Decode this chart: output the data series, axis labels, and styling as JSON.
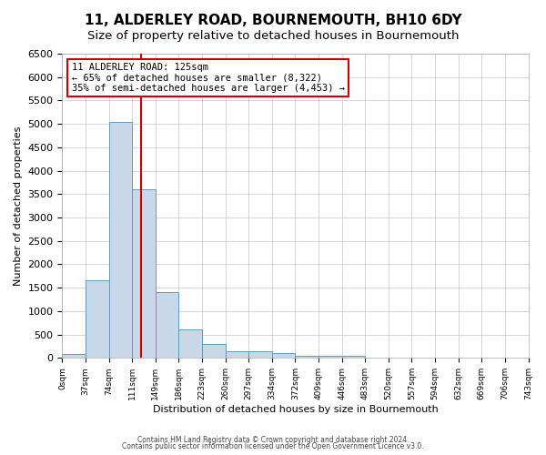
{
  "title": "11, ALDERLEY ROAD, BOURNEMOUTH, BH10 6DY",
  "subtitle": "Size of property relative to detached houses in Bournemouth",
  "xlabel": "Distribution of detached houses by size in Bournemouth",
  "ylabel": "Number of detached properties",
  "bin_labels": [
    "0sqm",
    "37sqm",
    "74sqm",
    "111sqm",
    "149sqm",
    "186sqm",
    "223sqm",
    "260sqm",
    "297sqm",
    "334sqm",
    "372sqm",
    "409sqm",
    "446sqm",
    "483sqm",
    "520sqm",
    "557sqm",
    "594sqm",
    "632sqm",
    "669sqm",
    "706sqm",
    "743sqm"
  ],
  "bar_heights": [
    75,
    1650,
    5050,
    3600,
    1400,
    600,
    300,
    150,
    150,
    100,
    50,
    50,
    50,
    0,
    0,
    0,
    0,
    0,
    0,
    0
  ],
  "bar_color": "#c8d8e8",
  "bar_edge_color": "#6699bb",
  "property_size": 125,
  "red_line_color": "#cc0000",
  "annotation_text": "11 ALDERLEY ROAD: 125sqm\n← 65% of detached houses are smaller (8,322)\n35% of semi-detached houses are larger (4,453) →",
  "annotation_box_color": "#cc0000",
  "ylim": [
    0,
    6500
  ],
  "yticks": [
    0,
    500,
    1000,
    1500,
    2000,
    2500,
    3000,
    3500,
    4000,
    4500,
    5000,
    5500,
    6000,
    6500
  ],
  "footer1": "Contains HM Land Registry data © Crown copyright and database right 2024.",
  "footer2": "Contains public sector information licensed under the Open Government Licence v3.0.",
  "background_color": "#ffffff",
  "grid_color": "#c0c8d0",
  "title_fontsize": 11,
  "subtitle_fontsize": 9.5
}
